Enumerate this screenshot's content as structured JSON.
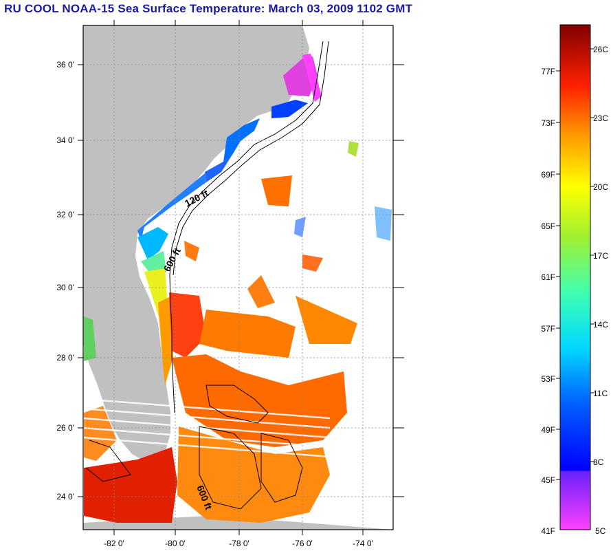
{
  "title": "RU COOL  NOAA-15  Sea Surface Temperature:  March 03, 2009 1102 GMT",
  "map": {
    "lat_ticks": [
      "24 0'",
      "26 0'",
      "28 0'",
      "30 0'",
      "32 0'",
      "34 0'",
      "36 0'"
    ],
    "lon_ticks": [
      "-82 0'",
      "-80 0'",
      "-78 0'",
      "-76 0'",
      "-74 0'"
    ],
    "contour_labels": [
      "120 ft",
      "600 ft",
      "600 ft"
    ],
    "colors": {
      "land": "#c0c0c0",
      "ocean": "#ffffff",
      "grid": "#888888"
    }
  },
  "colorbar": {
    "fahrenheit": [
      "77F",
      "73F",
      "69F",
      "65F",
      "61F",
      "57F",
      "53F",
      "49F",
      "45F",
      "41F"
    ],
    "celsius": [
      "26C",
      "23C",
      "20C",
      "17C",
      "14C",
      "11C",
      "8C",
      "5C"
    ],
    "stops": [
      "#ff40ff",
      "#7a22ff",
      "#0000ff",
      "#00c8ff",
      "#00ffcc",
      "#60f060",
      "#ffff00",
      "#ff9000",
      "#ff2000",
      "#800000"
    ]
  }
}
